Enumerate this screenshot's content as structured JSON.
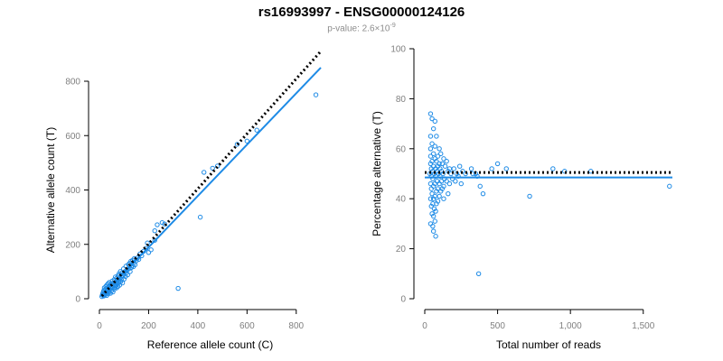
{
  "title": "rs16993997 - ENSG00000124126",
  "subtitle_prefix": "p-value: 2.6×10",
  "subtitle_exponent": "-9",
  "colors": {
    "points": "#1E8BE6",
    "fit": "#1E8BE6",
    "reference": "#000000"
  },
  "chart_data": [
    {
      "type": "scatter",
      "title": "",
      "xlabel": "Reference allele count (C)",
      "ylabel": "Alternative allele count (T)",
      "xlim": [
        0,
        900
      ],
      "ylim": [
        0,
        800
      ],
      "xticks": [
        0,
        200,
        400,
        600,
        800
      ],
      "yticks": [
        0,
        200,
        400,
        600,
        800
      ],
      "xtick_labels": [
        "0",
        "200",
        "400",
        "600",
        "800"
      ],
      "ytick_labels": [
        "0",
        "200",
        "400",
        "600",
        "800"
      ],
      "grid": false,
      "fit_line": {
        "style": "solid",
        "from": [
          10,
          10
        ],
        "to": [
          900,
          850
        ]
      },
      "reference_line": {
        "style": "dotted",
        "from": [
          10,
          10
        ],
        "to": [
          900,
          910
        ]
      },
      "points": [
        [
          10,
          8
        ],
        [
          12,
          14
        ],
        [
          14,
          20
        ],
        [
          15,
          12
        ],
        [
          16,
          25
        ],
        [
          18,
          10
        ],
        [
          18,
          30
        ],
        [
          20,
          18
        ],
        [
          20,
          40
        ],
        [
          22,
          22
        ],
        [
          24,
          15
        ],
        [
          25,
          35
        ],
        [
          26,
          45
        ],
        [
          28,
          20
        ],
        [
          28,
          28
        ],
        [
          30,
          12
        ],
        [
          30,
          50
        ],
        [
          32,
          25
        ],
        [
          33,
          40
        ],
        [
          35,
          30
        ],
        [
          35,
          55
        ],
        [
          36,
          18
        ],
        [
          38,
          45
        ],
        [
          40,
          25
        ],
        [
          40,
          60
        ],
        [
          42,
          35
        ],
        [
          44,
          50
        ],
        [
          45,
          20
        ],
        [
          45,
          40
        ],
        [
          48,
          55
        ],
        [
          50,
          30
        ],
        [
          50,
          45
        ],
        [
          52,
          65
        ],
        [
          54,
          40
        ],
        [
          55,
          25
        ],
        [
          56,
          58
        ],
        [
          58,
          48
        ],
        [
          60,
          35
        ],
        [
          60,
          70
        ],
        [
          62,
          52
        ],
        [
          64,
          42
        ],
        [
          65,
          80
        ],
        [
          66,
          60
        ],
        [
          68,
          50
        ],
        [
          70,
          40
        ],
        [
          70,
          75
        ],
        [
          72,
          62
        ],
        [
          74,
          55
        ],
        [
          75,
          45
        ],
        [
          76,
          85
        ],
        [
          78,
          68
        ],
        [
          80,
          60
        ],
        [
          80,
          92
        ],
        [
          82,
          50
        ],
        [
          84,
          75
        ],
        [
          85,
          100
        ],
        [
          86,
          62
        ],
        [
          88,
          80
        ],
        [
          90,
          70
        ],
        [
          92,
          95
        ],
        [
          94,
          58
        ],
        [
          95,
          85
        ],
        [
          98,
          110
        ],
        [
          100,
          90
        ],
        [
          100,
          72
        ],
        [
          104,
          100
        ],
        [
          106,
          82
        ],
        [
          108,
          120
        ],
        [
          110,
          95
        ],
        [
          112,
          105
        ],
        [
          115,
          88
        ],
        [
          118,
          125
        ],
        [
          120,
          110
        ],
        [
          122,
          130
        ],
        [
          125,
          100
        ],
        [
          128,
          138
        ],
        [
          130,
          115
        ],
        [
          132,
          122
        ],
        [
          135,
          142
        ],
        [
          138,
          118
        ],
        [
          140,
          132
        ],
        [
          142,
          148
        ],
        [
          145,
          125
        ],
        [
          150,
          140
        ],
        [
          155,
          150
        ],
        [
          160,
          145
        ],
        [
          165,
          165
        ],
        [
          172,
          158
        ],
        [
          180,
          175
        ],
        [
          190,
          185
        ],
        [
          195,
          205
        ],
        [
          200,
          170
        ],
        [
          210,
          180
        ],
        [
          225,
          250
        ],
        [
          225,
          215
        ],
        [
          235,
          272
        ],
        [
          255,
          280
        ],
        [
          265,
          275
        ],
        [
          320,
          38
        ],
        [
          410,
          300
        ],
        [
          425,
          465
        ],
        [
          460,
          480
        ],
        [
          480,
          488
        ],
        [
          560,
          568
        ],
        [
          600,
          580
        ],
        [
          640,
          620
        ],
        [
          880,
          750
        ]
      ]
    },
    {
      "type": "scatter",
      "title": "",
      "xlabel": "Total number of reads",
      "ylabel": "Percentage alternative (T)",
      "xlim": [
        0,
        1700
      ],
      "ylim": [
        0,
        100
      ],
      "xticks": [
        0,
        500,
        1000,
        1500
      ],
      "yticks": [
        0,
        20,
        40,
        60,
        80,
        100
      ],
      "xtick_labels": [
        "0",
        "500",
        "1,000",
        "1,500"
      ],
      "ytick_labels": [
        "0",
        "20",
        "40",
        "60",
        "80",
        "100"
      ],
      "grid": false,
      "fit_line": {
        "style": "solid",
        "from": [
          0,
          48.5
        ],
        "to": [
          1700,
          48.5
        ]
      },
      "reference_line": {
        "style": "dotted",
        "from": [
          0,
          50.5
        ],
        "to": [
          1700,
          50.5
        ]
      },
      "points": [
        [
          40,
          74
        ],
        [
          50,
          72
        ],
        [
          70,
          71
        ],
        [
          60,
          68
        ],
        [
          40,
          65
        ],
        [
          80,
          65
        ],
        [
          50,
          62
        ],
        [
          70,
          61
        ],
        [
          40,
          60
        ],
        [
          100,
          60
        ],
        [
          60,
          58
        ],
        [
          90,
          57
        ],
        [
          110,
          58
        ],
        [
          40,
          57
        ],
        [
          70,
          56
        ],
        [
          130,
          56
        ],
        [
          50,
          55
        ],
        [
          80,
          55
        ],
        [
          100,
          54
        ],
        [
          120,
          54
        ],
        [
          150,
          55
        ],
        [
          40,
          54
        ],
        [
          60,
          53
        ],
        [
          90,
          53
        ],
        [
          140,
          53
        ],
        [
          170,
          52
        ],
        [
          45,
          52
        ],
        [
          75,
          52
        ],
        [
          105,
          52
        ],
        [
          55,
          51
        ],
        [
          85,
          51
        ],
        [
          115,
          51
        ],
        [
          160,
          51
        ],
        [
          200,
          52
        ],
        [
          240,
          53
        ],
        [
          35,
          50
        ],
        [
          65,
          50
        ],
        [
          95,
          50
        ],
        [
          125,
          50
        ],
        [
          180,
          50
        ],
        [
          220,
          50
        ],
        [
          260,
          51
        ],
        [
          45,
          49
        ],
        [
          75,
          49
        ],
        [
          105,
          49
        ],
        [
          135,
          48
        ],
        [
          190,
          48
        ],
        [
          230,
          49
        ],
        [
          280,
          50
        ],
        [
          55,
          48
        ],
        [
          85,
          47
        ],
        [
          115,
          47
        ],
        [
          150,
          47
        ],
        [
          210,
          47
        ],
        [
          40,
          46
        ],
        [
          70,
          46
        ],
        [
          100,
          46
        ],
        [
          130,
          45
        ],
        [
          170,
          46
        ],
        [
          250,
          46
        ],
        [
          60,
          45
        ],
        [
          90,
          44
        ],
        [
          120,
          44
        ],
        [
          45,
          44
        ],
        [
          80,
          43
        ],
        [
          110,
          43
        ],
        [
          160,
          42
        ],
        [
          50,
          42
        ],
        [
          70,
          41
        ],
        [
          100,
          41
        ],
        [
          40,
          40
        ],
        [
          60,
          40
        ],
        [
          90,
          39
        ],
        [
          130,
          40
        ],
        [
          55,
          38
        ],
        [
          80,
          38
        ],
        [
          45,
          37
        ],
        [
          65,
          36
        ],
        [
          75,
          35
        ],
        [
          50,
          34
        ],
        [
          60,
          33
        ],
        [
          70,
          31
        ],
        [
          40,
          30
        ],
        [
          55,
          29
        ],
        [
          60,
          27
        ],
        [
          75,
          25
        ],
        [
          320,
          52
        ],
        [
          330,
          50
        ],
        [
          350,
          50
        ],
        [
          360,
          49
        ],
        [
          380,
          45
        ],
        [
          400,
          42
        ],
        [
          460,
          52
        ],
        [
          500,
          54
        ],
        [
          560,
          52
        ],
        [
          720,
          41
        ],
        [
          880,
          52
        ],
        [
          960,
          51
        ],
        [
          1140,
          51
        ],
        [
          1680,
          45
        ],
        [
          370,
          10
        ]
      ]
    }
  ]
}
